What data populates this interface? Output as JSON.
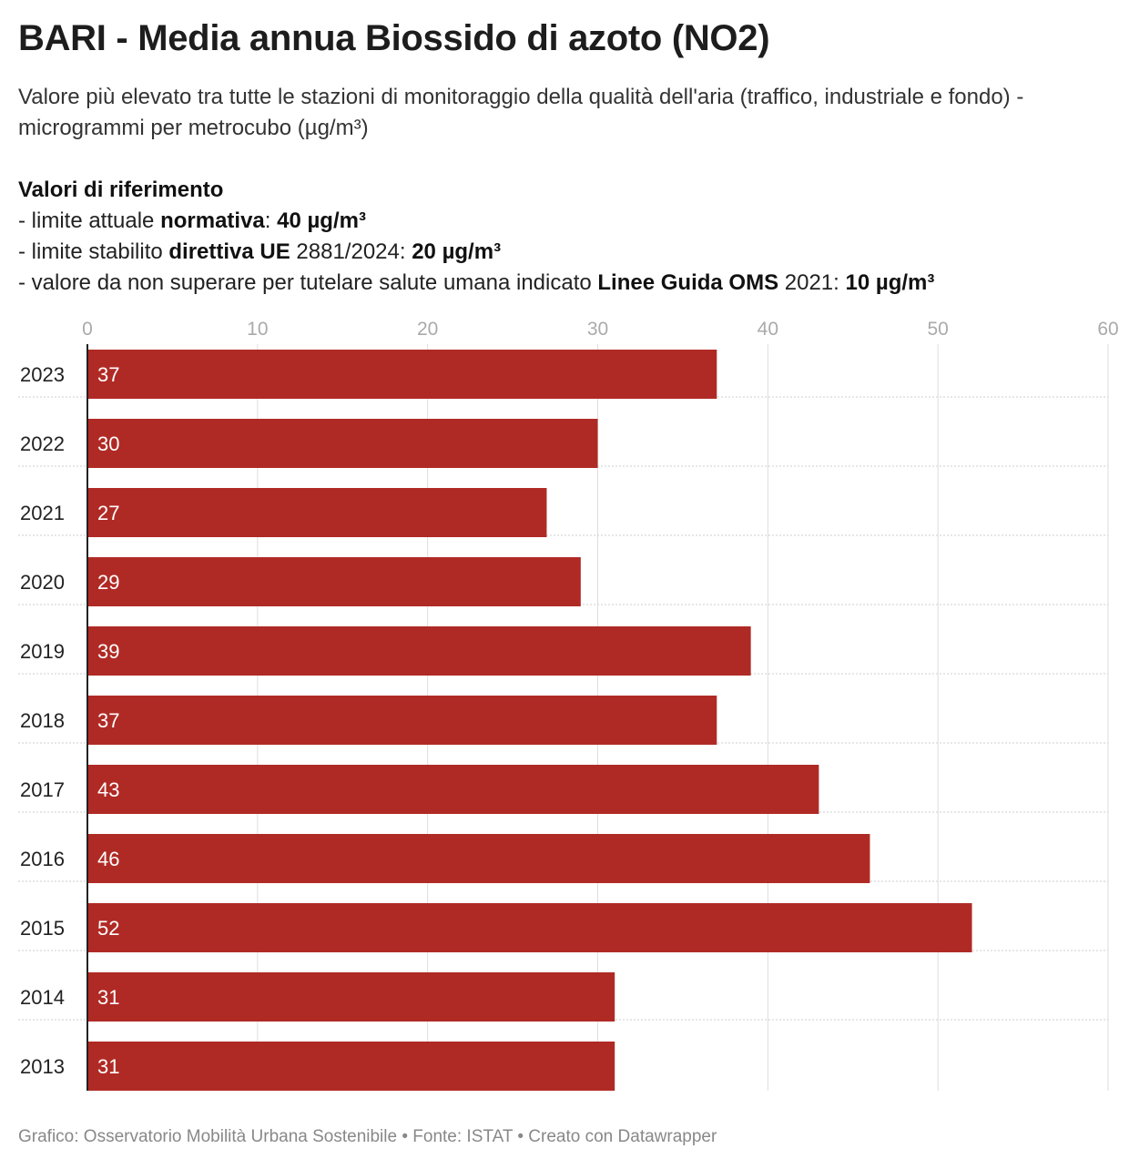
{
  "title": "BARI - Media annua Biossido di azoto (NO2)",
  "subtitle": "Valore più elevato tra tutte le stazioni di monitoraggio della qualità dell'aria (traffico, industriale e fondo) - microgrammi per metrocubo (µg/m³)",
  "reference": {
    "heading": "Valori di riferimento",
    "lines": [
      {
        "text_before": "- limite attuale ",
        "bold": "normativa",
        "text_mid": ": ",
        "value": "40 µg/m³"
      },
      {
        "text_before": "- limite stabilito ",
        "bold": "direttiva UE",
        "text_mid": " 2881/2024: ",
        "value": "20 µg/m³"
      },
      {
        "text_before": "- valore da non superare per tutelare salute umana indicato ",
        "bold": "Linee Guida OMS",
        "text_mid": " 2021: ",
        "value": "10 µg/m³"
      }
    ]
  },
  "footer": "Grafico: Osservatorio Mobilità Urbana Sostenibile • Fonte: ISTAT • Creato con Datawrapper",
  "chart_data": {
    "type": "bar",
    "orientation": "horizontal",
    "categories": [
      "2023",
      "2022",
      "2021",
      "2020",
      "2019",
      "2018",
      "2017",
      "2016",
      "2015",
      "2014",
      "2013"
    ],
    "values": [
      37,
      30,
      27,
      29,
      39,
      37,
      43,
      46,
      52,
      31,
      31
    ],
    "xlim": [
      0,
      60
    ],
    "x_ticks": [
      0,
      10,
      20,
      30,
      40,
      50,
      60
    ],
    "grid": true,
    "bar_color": "#b02a25",
    "label_color": "#ffffff"
  }
}
